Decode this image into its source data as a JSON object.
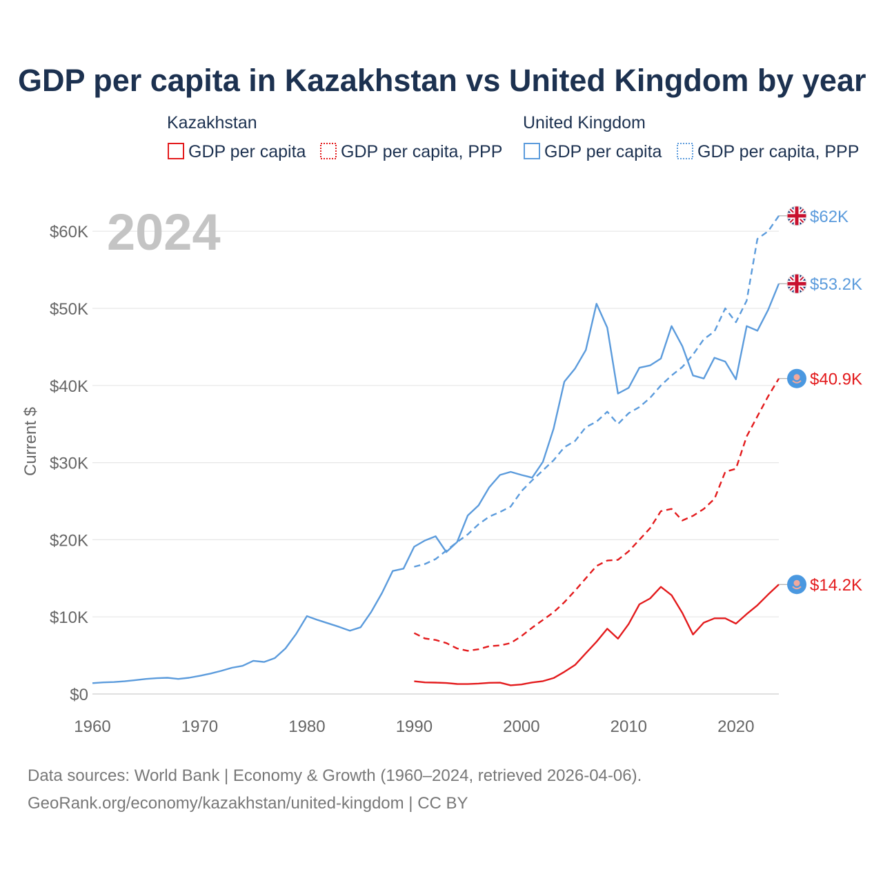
{
  "chart_data": {
    "type": "line",
    "title": "GDP per capita in Kazakhstan vs United Kingdom by year",
    "year_label": "2024",
    "ylabel": "Current $",
    "xlabel": "",
    "xlim": [
      1960,
      2024
    ],
    "ylim": [
      0,
      65000
    ],
    "x_ticks": [
      1960,
      1970,
      1980,
      1990,
      2000,
      2010,
      2020
    ],
    "x_tick_labels": [
      "1960",
      "1970",
      "1980",
      "1990",
      "2000",
      "2010",
      "2020"
    ],
    "y_ticks": [
      0,
      10000,
      20000,
      30000,
      40000,
      50000,
      60000
    ],
    "y_tick_labels": [
      "$0",
      "$10K",
      "$20K",
      "$30K",
      "$40K",
      "$50K",
      "$60K"
    ],
    "grid": true,
    "legend": {
      "groups": [
        {
          "country": "Kazakhstan",
          "entries": [
            "GDP per capita",
            "GDP per capita, PPP"
          ],
          "color": "#e31a1c"
        },
        {
          "country": "United Kingdom",
          "entries": [
            "GDP per capita",
            "GDP per capita, PPP"
          ],
          "color": "#5b9bdc"
        }
      ]
    },
    "series": [
      {
        "name": "United Kingdom GDP per capita",
        "country": "United Kingdom",
        "style": "solid",
        "color": "#5b9bdc",
        "icon": "uk-flag-icon",
        "end_label": "$53.2K",
        "x": [
          1960,
          1961,
          1962,
          1963,
          1964,
          1965,
          1966,
          1967,
          1968,
          1969,
          1970,
          1971,
          1972,
          1973,
          1974,
          1975,
          1976,
          1977,
          1978,
          1979,
          1980,
          1981,
          1982,
          1983,
          1984,
          1985,
          1986,
          1987,
          1988,
          1989,
          1990,
          1991,
          1992,
          1993,
          1994,
          1995,
          1996,
          1997,
          1998,
          1999,
          2000,
          2001,
          2002,
          2003,
          2004,
          2005,
          2006,
          2007,
          2008,
          2009,
          2010,
          2011,
          2012,
          2013,
          2014,
          2015,
          2016,
          2017,
          2018,
          2019,
          2020,
          2021,
          2022,
          2023,
          2024
        ],
        "values": [
          1400,
          1500,
          1550,
          1650,
          1800,
          1950,
          2050,
          2100,
          1950,
          2100,
          2350,
          2650,
          3000,
          3400,
          3650,
          4300,
          4150,
          4650,
          5900,
          7800,
          10100,
          9600,
          9150,
          8700,
          8200,
          8650,
          10650,
          13100,
          15950,
          16250,
          19100,
          19900,
          20450,
          18400,
          19700,
          23150,
          24450,
          26800,
          28400,
          28800,
          28400,
          28050,
          30100,
          34400,
          40500,
          42200,
          44600,
          50600,
          47500,
          38950,
          39700,
          42300,
          42600,
          43500,
          47700,
          45100,
          41300,
          40900,
          43600,
          43100,
          40800,
          47700,
          47100,
          49800,
          53200
        ]
      },
      {
        "name": "United Kingdom GDP per capita, PPP",
        "country": "United Kingdom",
        "style": "dashed",
        "color": "#5b9bdc",
        "icon": "uk-flag-icon",
        "end_label": "$62K",
        "x": [
          1990,
          1991,
          1992,
          1993,
          1994,
          1995,
          1996,
          1997,
          1998,
          1999,
          2000,
          2001,
          2002,
          2003,
          2004,
          2005,
          2006,
          2007,
          2008,
          2009,
          2010,
          2011,
          2012,
          2013,
          2014,
          2015,
          2016,
          2017,
          2018,
          2019,
          2020,
          2021,
          2022,
          2023,
          2024
        ],
        "values": [
          16500,
          16850,
          17500,
          18600,
          19700,
          20700,
          22000,
          23000,
          23600,
          24300,
          26300,
          27700,
          29000,
          30300,
          32000,
          32800,
          34600,
          35300,
          36600,
          35000,
          36400,
          37200,
          38400,
          40000,
          41300,
          42400,
          44000,
          46000,
          47000,
          50000,
          48200,
          51000,
          59000,
          60000,
          62000
        ]
      },
      {
        "name": "Kazakhstan GDP per capita",
        "country": "Kazakhstan",
        "style": "solid",
        "color": "#e31a1c",
        "icon": "kz-flag-icon",
        "end_label": "$14.2K",
        "x": [
          1990,
          1991,
          1992,
          1993,
          1994,
          1995,
          1996,
          1997,
          1998,
          1999,
          2000,
          2001,
          2002,
          2003,
          2004,
          2005,
          2006,
          2007,
          2008,
          2009,
          2010,
          2011,
          2012,
          2013,
          2014,
          2015,
          2016,
          2017,
          2018,
          2019,
          2020,
          2021,
          2022,
          2023,
          2024
        ],
        "values": [
          1650,
          1500,
          1480,
          1420,
          1300,
          1290,
          1350,
          1450,
          1470,
          1130,
          1230,
          1490,
          1660,
          2070,
          2870,
          3770,
          5290,
          6770,
          8460,
          7170,
          9070,
          11630,
          12390,
          13890,
          12810,
          10510,
          7710,
          9250,
          9810,
          9810,
          9120,
          10370,
          11500,
          12900,
          14200
        ]
      },
      {
        "name": "Kazakhstan GDP per capita, PPP",
        "country": "Kazakhstan",
        "style": "dashed",
        "color": "#e31a1c",
        "icon": "kz-flag-icon",
        "end_label": "$40.9K",
        "x": [
          1990,
          1991,
          1992,
          1993,
          1994,
          1995,
          1996,
          1997,
          1998,
          1999,
          2000,
          2001,
          2002,
          2003,
          2004,
          2005,
          2006,
          2007,
          2008,
          2009,
          2010,
          2011,
          2012,
          2013,
          2014,
          2015,
          2016,
          2017,
          2018,
          2019,
          2020,
          2021,
          2022,
          2023,
          2024
        ],
        "values": [
          7900,
          7200,
          7000,
          6600,
          5900,
          5600,
          5800,
          6200,
          6300,
          6600,
          7500,
          8600,
          9600,
          10600,
          11900,
          13400,
          15000,
          16600,
          17300,
          17400,
          18500,
          20000,
          21500,
          23700,
          24000,
          22500,
          23100,
          24000,
          25300,
          28800,
          29200,
          33400,
          36000,
          38600,
          40900
        ]
      }
    ]
  },
  "footer": {
    "line1": "Data sources: World Bank | Economy & Growth (1960–2024, retrieved 2026-04-06).",
    "line2": "GeoRank.org/economy/kazakhstan/united-kingdom | CC BY"
  }
}
